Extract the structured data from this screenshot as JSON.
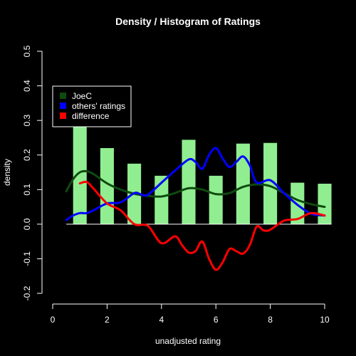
{
  "chart_data": {
    "type": "bar",
    "title": "Density / Histogram of Ratings",
    "xlabel": "unadjusted rating",
    "ylabel": "density",
    "xlim": [
      0,
      10
    ],
    "ylim": [
      -0.2,
      0.5
    ],
    "x_ticks": [
      "0",
      "2",
      "4",
      "6",
      "8",
      "10"
    ],
    "x_tick_values": [
      0,
      2,
      4,
      6,
      8,
      10
    ],
    "y_ticks": [
      "-0.2",
      "-0.1",
      "0.0",
      "0.1",
      "0.2",
      "0.3",
      "0.4",
      "0.5"
    ],
    "y_tick_values": [
      -0.2,
      -0.1,
      0.0,
      0.1,
      0.2,
      0.3,
      0.4,
      0.5
    ],
    "grid": false,
    "legend_position": "top-left",
    "background_color": "#000000",
    "foreground_color": "#ffffff",
    "histogram": {
      "color": "#90ee90",
      "bars": [
        {
          "x0": 0.75,
          "x1": 1.25,
          "value": 0.29
        },
        {
          "x0": 1.75,
          "x1": 2.25,
          "value": 0.22
        },
        {
          "x0": 2.75,
          "x1": 3.25,
          "value": 0.175
        },
        {
          "x0": 3.75,
          "x1": 4.25,
          "value": 0.14
        },
        {
          "x0": 4.75,
          "x1": 5.25,
          "value": 0.244
        },
        {
          "x0": 5.75,
          "x1": 6.25,
          "value": 0.14
        },
        {
          "x0": 6.75,
          "x1": 7.25,
          "value": 0.233
        },
        {
          "x0": 7.75,
          "x1": 8.25,
          "value": 0.235
        },
        {
          "x0": 8.75,
          "x1": 9.25,
          "value": 0.12
        },
        {
          "x0": 9.75,
          "x1": 10.25,
          "value": 0.117
        }
      ]
    },
    "series": [
      {
        "name": "JoeC",
        "color": "#0f4a0f",
        "x": [
          0.5,
          0.75,
          1.0,
          1.25,
          1.5,
          2.0,
          2.5,
          3.0,
          3.5,
          4.0,
          4.5,
          5.0,
          5.5,
          6.0,
          6.5,
          7.0,
          7.5,
          8.0,
          8.5,
          9.0,
          9.5,
          10.0
        ],
        "y": [
          0.095,
          0.13,
          0.15,
          0.153,
          0.145,
          0.118,
          0.1,
          0.088,
          0.082,
          0.08,
          0.09,
          0.104,
          0.1,
          0.087,
          0.09,
          0.108,
          0.115,
          0.11,
          0.09,
          0.07,
          0.058,
          0.05
        ]
      },
      {
        "name": "others' ratings",
        "color": "#0000ff",
        "x": [
          0.5,
          0.75,
          1.0,
          1.25,
          1.5,
          2.0,
          2.5,
          3.0,
          3.25,
          3.5,
          4.0,
          4.5,
          5.0,
          5.25,
          5.5,
          5.75,
          6.0,
          6.25,
          6.5,
          6.75,
          7.0,
          7.25,
          7.5,
          8.0,
          8.5,
          9.0,
          9.5,
          10.0
        ],
        "y": [
          0.012,
          0.025,
          0.032,
          0.032,
          0.04,
          0.06,
          0.063,
          0.09,
          0.086,
          0.085,
          0.12,
          0.155,
          0.187,
          0.18,
          0.16,
          0.2,
          0.22,
          0.19,
          0.165,
          0.18,
          0.196,
          0.17,
          0.12,
          0.127,
          0.09,
          0.056,
          0.03,
          0.025
        ]
      },
      {
        "name": "difference",
        "color": "#ff0000",
        "x": [
          1.0,
          1.25,
          1.5,
          2.0,
          2.5,
          3.0,
          3.5,
          4.0,
          4.5,
          4.75,
          5.0,
          5.25,
          5.5,
          5.75,
          6.0,
          6.25,
          6.5,
          6.75,
          7.0,
          7.25,
          7.5,
          7.75,
          8.0,
          8.5,
          9.0,
          9.5,
          10.0
        ],
        "y": [
          0.118,
          0.122,
          0.103,
          0.06,
          0.04,
          0.0,
          -0.005,
          -0.055,
          -0.035,
          -0.06,
          -0.082,
          -0.078,
          -0.05,
          -0.1,
          -0.132,
          -0.11,
          -0.072,
          -0.078,
          -0.085,
          -0.06,
          -0.007,
          -0.018,
          -0.016,
          0.01,
          0.015,
          0.032,
          0.025
        ]
      }
    ]
  }
}
